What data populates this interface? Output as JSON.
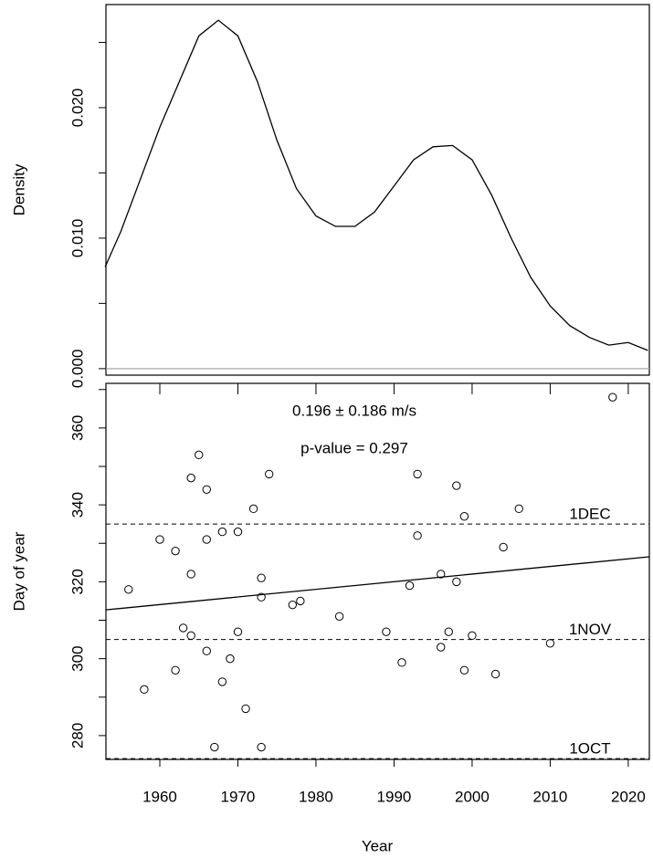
{
  "chart_data": [
    {
      "type": "line",
      "ylabel": "Density",
      "x": [
        1953,
        1955,
        1957.5,
        1960,
        1962.5,
        1965,
        1967.5,
        1970,
        1972.5,
        1975,
        1977.5,
        1980,
        1982.5,
        1985,
        1987.5,
        1990,
        1992.5,
        1995,
        1997.5,
        2000,
        2002.5,
        2005,
        2007.5,
        2010,
        2012.5,
        2015,
        2017.5,
        2020,
        2022.5
      ],
      "values": [
        0.0078,
        0.0105,
        0.0145,
        0.0185,
        0.022,
        0.0255,
        0.0267,
        0.0255,
        0.022,
        0.0175,
        0.0138,
        0.0117,
        0.0109,
        0.0109,
        0.012,
        0.014,
        0.016,
        0.017,
        0.0171,
        0.016,
        0.0133,
        0.01,
        0.007,
        0.0048,
        0.0033,
        0.0024,
        0.0018,
        0.002,
        0.0014
      ],
      "color": "#000000",
      "baseline": 0,
      "xlim": [
        1953.1,
        2022.7
      ],
      "ylim": [
        -0.0005,
        0.0279
      ],
      "yticks": [
        {
          "value": 0,
          "label": "0.000"
        },
        {
          "value": 0.01,
          "label": "0.010"
        },
        {
          "value": 0.02,
          "label": "0.020"
        }
      ],
      "yminorticks": [
        0.005,
        0.015,
        0.025
      ]
    },
    {
      "type": "scatter",
      "xlabel": "Year",
      "ylabel": "Day of year",
      "x": [
        1956,
        1958,
        1960,
        1962,
        1962,
        1963,
        1964,
        1964,
        1964,
        1965,
        1966,
        1966,
        1966,
        1967,
        1968,
        1968,
        1969,
        1970,
        1970,
        1971,
        1972,
        1973,
        1973,
        1973,
        1974,
        1977,
        1978,
        1983,
        1989,
        1991,
        1992,
        1993,
        1993,
        1996,
        1996,
        1997,
        1998,
        1998,
        1999,
        1999,
        2000,
        2003,
        2004,
        2006,
        2010,
        2018
      ],
      "values": [
        318,
        292,
        331,
        328,
        297,
        308,
        347,
        322,
        306,
        353,
        344,
        331,
        302,
        277,
        333,
        294,
        300,
        333,
        307,
        287,
        339,
        321,
        316,
        277,
        348,
        314,
        315,
        311,
        307,
        299,
        319,
        348,
        332,
        322,
        303,
        307,
        345,
        320,
        337,
        297,
        306,
        296,
        329,
        339,
        304,
        368
      ],
      "color": "#000000",
      "trend_line": {
        "x": [
          1953.1,
          2022.7
        ],
        "values": [
          312.7,
          326.5
        ]
      },
      "reference_lines": [
        {
          "label": "1DEC",
          "value": 335
        },
        {
          "label": "1NOV",
          "value": 305
        },
        {
          "label": "1OCT",
          "value": 274
        }
      ],
      "annotations": [
        "0.196 ± 0.186 m/s",
        "p-value = 0.297"
      ],
      "xlim": [
        1953.1,
        2022.7
      ],
      "ylim": [
        273.8,
        371.6
      ],
      "xticks": [
        1960,
        1970,
        1980,
        1990,
        2000,
        2010,
        2020
      ],
      "yticks": [
        280,
        300,
        320,
        340,
        360
      ],
      "yminorticks": [
        290,
        310,
        330,
        350,
        370
      ]
    }
  ]
}
